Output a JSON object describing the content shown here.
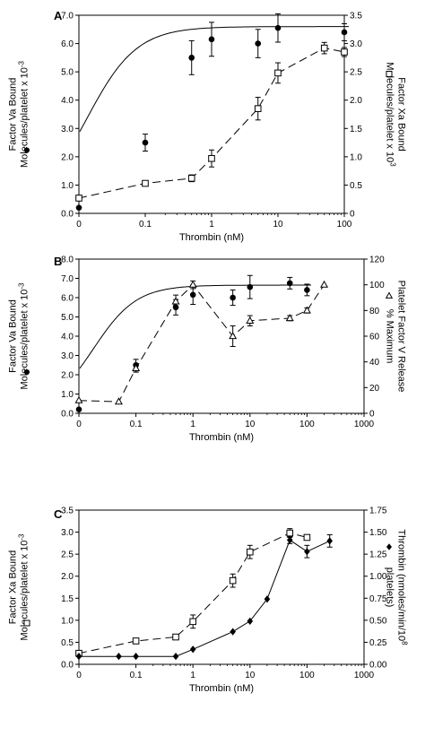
{
  "chart_data": [
    {
      "panel_label": "A",
      "type": "line",
      "xlabel": "Thrombin (nM)",
      "x_tick_labels": [
        "0",
        "0.1",
        "1",
        "10",
        "100"
      ],
      "x_tick_values": [
        0,
        0.1,
        1,
        10,
        100
      ],
      "left_axis": {
        "label_lines": [
          "Factor Va Bound",
          "Molecules/platelet x 10"
        ],
        "exponent": "-3",
        "ylim": [
          0,
          7.0
        ],
        "ticks": [
          "0.0",
          "1.0",
          "2.0",
          "3.0",
          "4.0",
          "5.0",
          "6.0",
          "7.0"
        ]
      },
      "right_axis": {
        "label_lines": [
          "Factor Xa Bound",
          "Molecules/platelet x 10"
        ],
        "exponent": "3",
        "ylim": [
          0,
          3.5
        ],
        "ticks": [
          "0",
          "0.5",
          "1.0",
          "1.5",
          "2.0",
          "2.5",
          "3.0",
          "3.5"
        ]
      },
      "series": [
        {
          "axis": "left",
          "marker": "filled-circle",
          "line": "fit-curve",
          "x": [
            0,
            0.1,
            0.5,
            1,
            5,
            10,
            100
          ],
          "y": [
            0.2,
            2.5,
            5.5,
            6.15,
            6.0,
            6.55,
            6.4
          ],
          "err": [
            0,
            0.3,
            0.6,
            0.6,
            0.5,
            0.5,
            0.3
          ],
          "fit": {
            "min": 0.05,
            "max": 6.6,
            "ec50": 0.13,
            "hill": 1.15
          }
        },
        {
          "axis": "right",
          "marker": "open-square",
          "line": "dashed",
          "x": [
            0,
            0.1,
            0.5,
            1,
            5,
            10,
            50,
            100
          ],
          "y": [
            0.27,
            0.53,
            0.62,
            0.97,
            1.85,
            2.48,
            2.92,
            2.85
          ],
          "err": [
            0,
            0,
            0.06,
            0.15,
            0.2,
            0.18,
            0.1,
            0.08
          ]
        }
      ]
    },
    {
      "panel_label": "B",
      "type": "line",
      "xlabel": "Thrombin (nM)",
      "x_tick_labels": [
        "0",
        "0.1",
        "1",
        "10",
        "100",
        "1000"
      ],
      "x_tick_values": [
        0,
        0.1,
        1,
        10,
        100,
        1000
      ],
      "left_axis": {
        "label_lines": [
          "Factor Va Bound",
          "Molecules/platelet x 10"
        ],
        "exponent": "-3",
        "ylim": [
          0,
          8.0
        ],
        "ticks": [
          "0.0",
          "1.0",
          "2.0",
          "3.0",
          "4.0",
          "5.0",
          "6.0",
          "7.0",
          "8.0"
        ]
      },
      "right_axis": {
        "label_lines": [
          "Platelet Factor V Release",
          "% Maximum"
        ],
        "exponent": "",
        "ylim": [
          0,
          120
        ],
        "ticks": [
          "0",
          "20",
          "40",
          "60",
          "80",
          "100",
          "120"
        ]
      },
      "series": [
        {
          "axis": "left",
          "marker": "filled-circle",
          "line": "fit-curve",
          "x": [
            0,
            0.1,
            0.5,
            1,
            5,
            10,
            50,
            100
          ],
          "y": [
            0.2,
            2.5,
            5.5,
            6.15,
            6.0,
            6.55,
            6.75,
            6.4
          ],
          "err": [
            0,
            0.3,
            0.4,
            0.5,
            0.4,
            0.6,
            0.3,
            0.3
          ],
          "fit": {
            "min": 0.05,
            "max": 6.65,
            "ec50": 0.18,
            "hill": 1.15
          }
        },
        {
          "axis": "right",
          "marker": "open-triangle",
          "line": "dashed",
          "x": [
            0,
            0.05,
            0.1,
            0.5,
            1,
            5,
            10,
            50,
            100,
            200
          ],
          "y": [
            10,
            9,
            35,
            87,
            100,
            60,
            72,
            74,
            80,
            100
          ],
          "err": [
            0,
            0,
            3,
            5,
            3,
            8,
            4,
            2,
            2,
            0
          ]
        }
      ]
    },
    {
      "panel_label": "C",
      "type": "line",
      "xlabel": "Thrombin (nM)",
      "x_tick_labels": [
        "0",
        "0.1",
        "1",
        "10",
        "100",
        "1000"
      ],
      "x_tick_values": [
        0,
        0.1,
        1,
        10,
        100,
        1000
      ],
      "left_axis": {
        "label_lines": [
          "Factor Xa Bound",
          "Molecules/platelet x 10"
        ],
        "exponent": "-3",
        "ylim": [
          0,
          3.5
        ],
        "ticks": [
          "0.0",
          "0.5",
          "1.0",
          "1.5",
          "2.0",
          "2.5",
          "3.0",
          "3.5"
        ]
      },
      "right_axis": {
        "label_lines": [
          "Thrombin (nmoles/min/10",
          " platelets)"
        ],
        "exponent": "8",
        "ylim": [
          0,
          1.75
        ],
        "ticks": [
          "0.00",
          "0.25",
          "0.50",
          "0.75",
          "1.00",
          "1.25",
          "1.50",
          "1.75"
        ]
      },
      "series": [
        {
          "axis": "left",
          "marker": "open-square",
          "line": "dashed",
          "x": [
            0,
            0.1,
            0.5,
            1,
            5,
            10,
            50,
            100
          ],
          "y": [
            0.25,
            0.53,
            0.62,
            0.97,
            1.9,
            2.55,
            2.98,
            2.88
          ],
          "err": [
            0,
            0,
            0.05,
            0.15,
            0.15,
            0.15,
            0.1,
            0.05
          ]
        },
        {
          "axis": "right",
          "marker": "filled-diamond",
          "line": "solid",
          "x": [
            0,
            0.05,
            0.1,
            0.5,
            1,
            5,
            10,
            20,
            50,
            100,
            250
          ],
          "y": [
            0.09,
            0.09,
            0.09,
            0.09,
            0.17,
            0.37,
            0.49,
            0.74,
            1.41,
            1.28,
            1.4
          ],
          "err": [
            0,
            0,
            0,
            0,
            0,
            0,
            0,
            0,
            0.04,
            0.07,
            0.07
          ]
        }
      ]
    }
  ]
}
